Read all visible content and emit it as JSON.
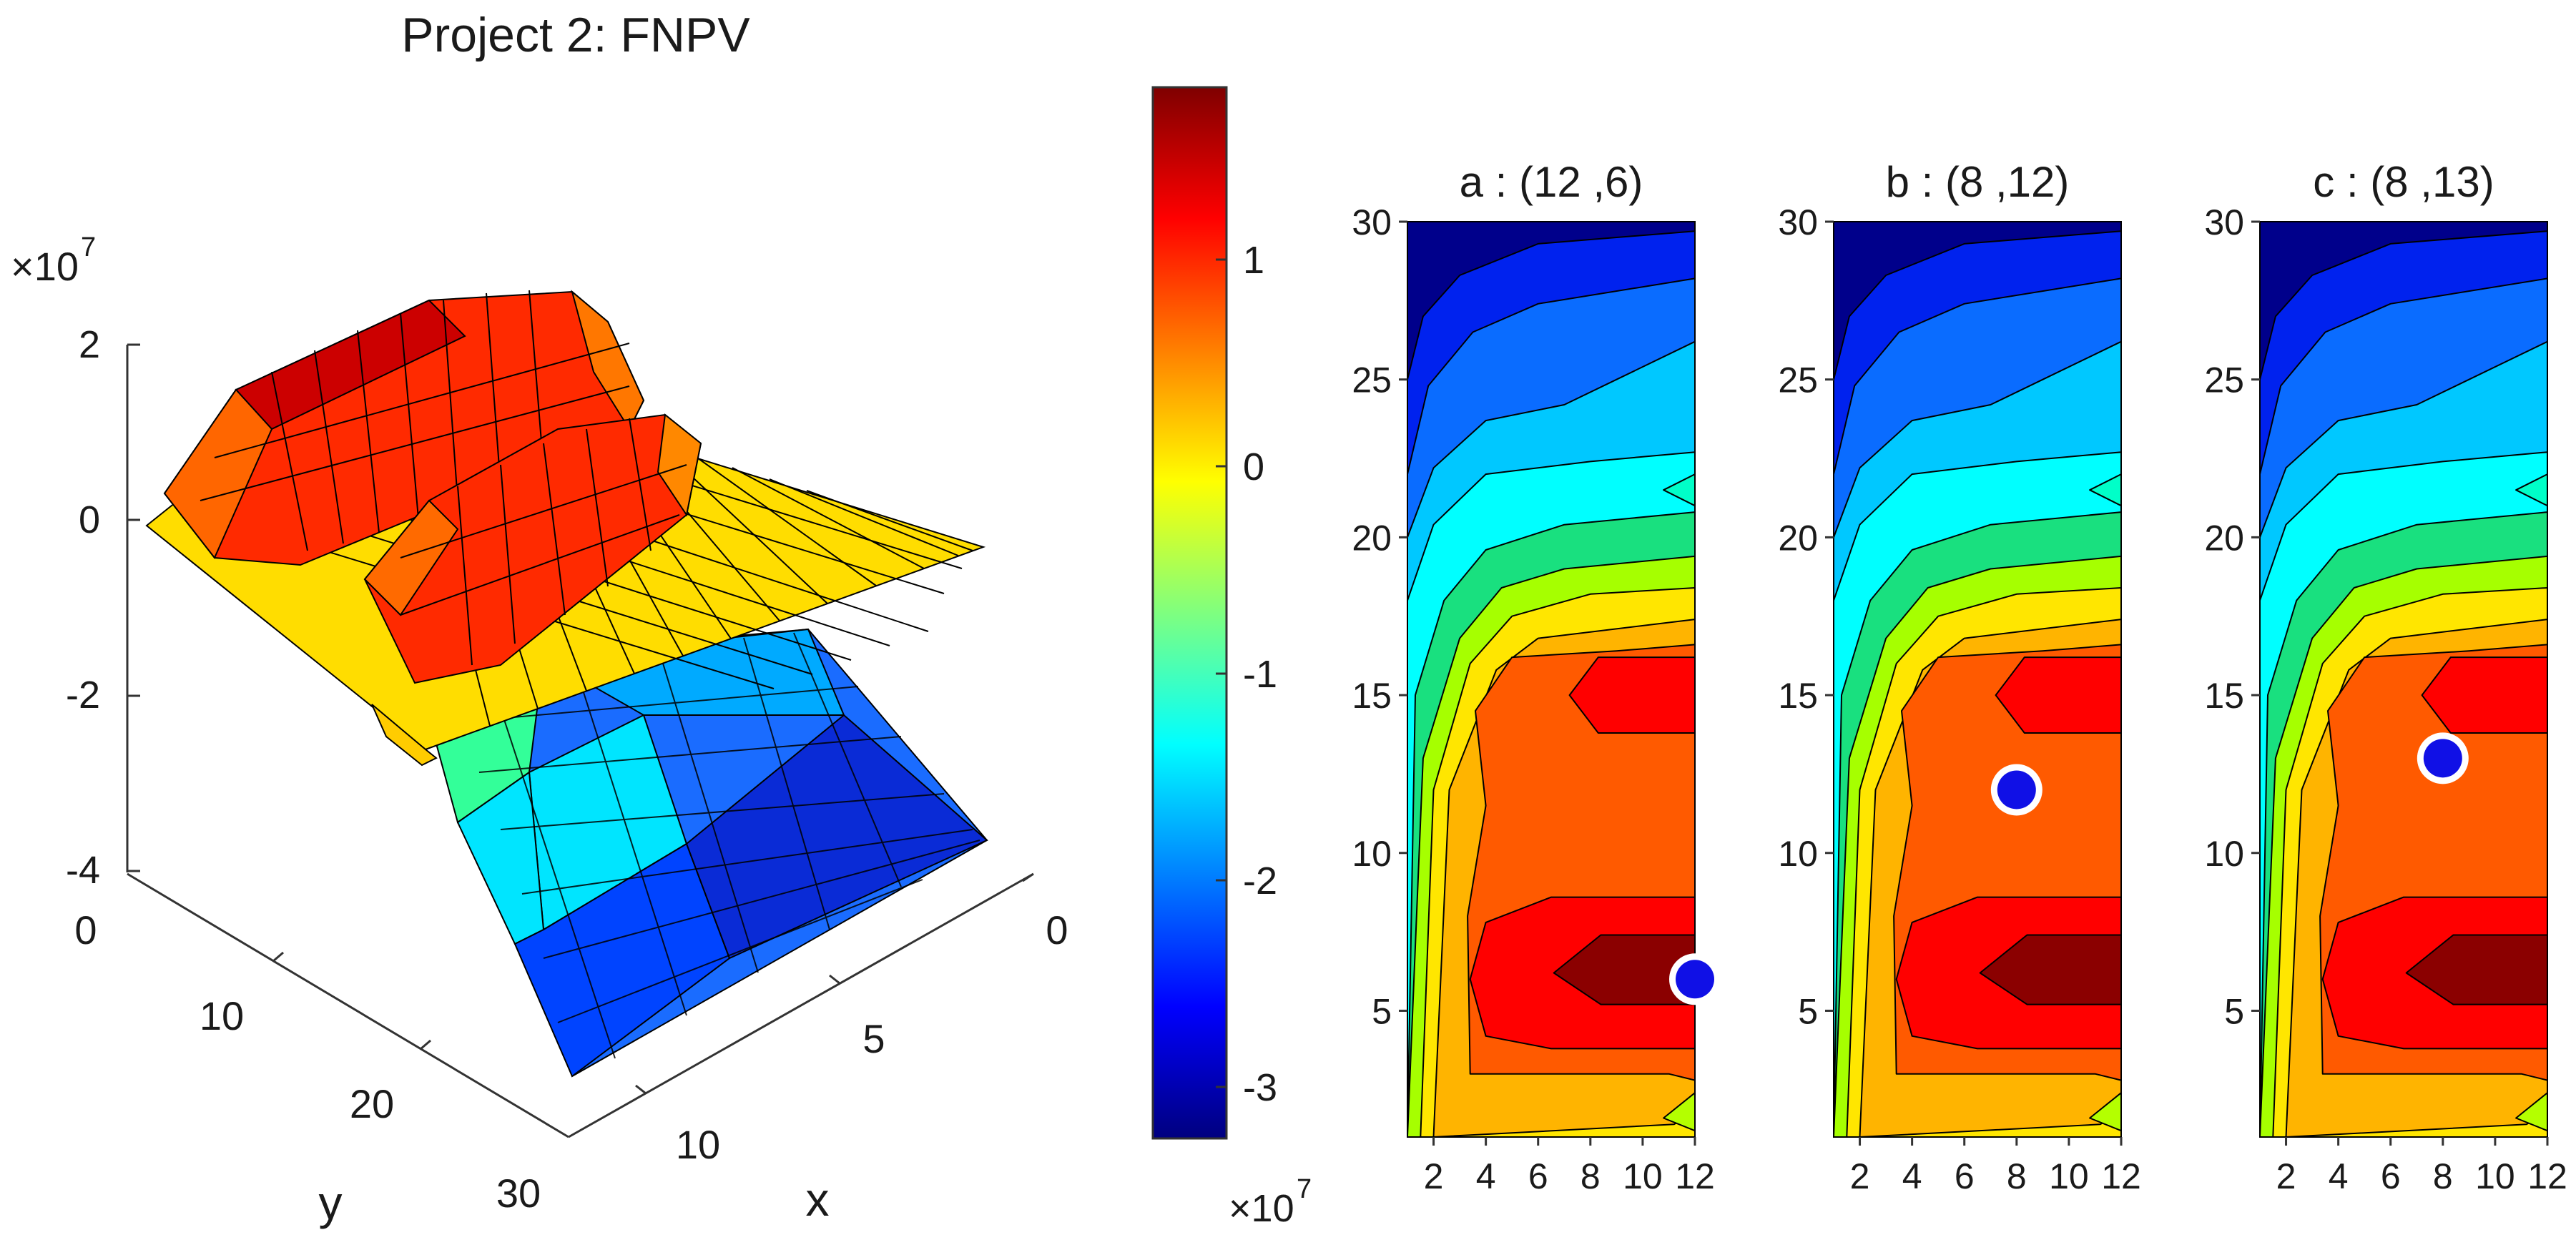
{
  "surface": {
    "title": "Project 2: FNPV",
    "exponent_base": "×10",
    "exponent_power": "7",
    "z_ticks": [
      "2",
      "0",
      "-2",
      "-4"
    ],
    "y_ticks": [
      "0",
      "10",
      "20",
      "30"
    ],
    "x_ticks": [
      "0",
      "5",
      "10"
    ],
    "xlabel": "x",
    "ylabel": "y"
  },
  "colorbar": {
    "ticks": [
      "1",
      "0",
      "-1",
      "-2",
      "-3"
    ],
    "exponent_base": "×10",
    "exponent_power": "7",
    "colors": [
      "#00007f",
      "#0000ff",
      "#007fff",
      "#00ffff",
      "#7fff7f",
      "#ffff00",
      "#ff7f00",
      "#ff0000",
      "#7f0000"
    ]
  },
  "contours": [
    {
      "title": "a : (12 ,6)",
      "point": [
        12,
        6
      ]
    },
    {
      "title": "b : (8 ,12)",
      "point": [
        8,
        12
      ]
    },
    {
      "title": "c : (8 ,13)",
      "point": [
        8,
        13
      ]
    }
  ],
  "contour_axes": {
    "x_ticks": [
      "2",
      "4",
      "6",
      "8",
      "10",
      "12"
    ],
    "y_ticks": [
      "5",
      "10",
      "15",
      "20",
      "25",
      "30"
    ]
  },
  "chart_data": [
    {
      "type": "surface",
      "title": "Project 2: FNPV",
      "xlabel": "x",
      "ylabel": "y",
      "zlabel": "",
      "z_multiplier": "×10^7",
      "xlim": [
        0,
        12
      ],
      "ylim": [
        0,
        30
      ],
      "zlim": [
        -4,
        2
      ],
      "planes": [
        {
          "name": "upper",
          "base_z": 0,
          "peak_z": 1.7,
          "ridges_y": [
            6,
            14
          ]
        },
        {
          "name": "lower",
          "z_at_y0": -1.5,
          "z_at_y30": -3.5
        }
      ]
    },
    {
      "type": "heatmap",
      "title": "a : (12 ,6)",
      "xlim": [
        1,
        12
      ],
      "ylim": [
        1,
        30
      ],
      "marked_point": {
        "x": 12,
        "y": 6
      }
    },
    {
      "type": "heatmap",
      "title": "b : (8 ,12)",
      "xlim": [
        1,
        12
      ],
      "ylim": [
        1,
        30
      ],
      "marked_point": {
        "x": 8,
        "y": 12
      }
    },
    {
      "type": "heatmap",
      "title": "c : (8 ,13)",
      "xlim": [
        1,
        12
      ],
      "ylim": [
        1,
        30
      ],
      "marked_point": {
        "x": 8,
        "y": 13
      }
    },
    {
      "type": "colorbar",
      "range": [
        -3.3,
        1.8
      ],
      "ticks": [
        1,
        0,
        -1,
        -2,
        -3
      ],
      "multiplier": "×10^7"
    }
  ]
}
